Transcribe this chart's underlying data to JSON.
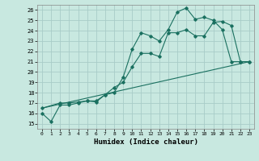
{
  "title": "",
  "xlabel": "Humidex (Indice chaleur)",
  "bg_color": "#c8e8e0",
  "grid_color": "#a8ccc8",
  "line_color": "#1a7060",
  "xlim": [
    -0.5,
    23.5
  ],
  "ylim": [
    14.5,
    26.5
  ],
  "xticks": [
    0,
    1,
    2,
    3,
    4,
    5,
    6,
    7,
    8,
    9,
    10,
    11,
    12,
    13,
    14,
    15,
    16,
    17,
    18,
    19,
    20,
    21,
    22,
    23
  ],
  "yticks": [
    15,
    16,
    17,
    18,
    19,
    20,
    21,
    22,
    23,
    24,
    25,
    26
  ],
  "line1_x": [
    0,
    1,
    2,
    3,
    4,
    5,
    6,
    7,
    8,
    9,
    10,
    11,
    12,
    13,
    14,
    15,
    16,
    17,
    18,
    19,
    20,
    21,
    22,
    23
  ],
  "line1_y": [
    16.0,
    15.2,
    16.8,
    16.8,
    17.0,
    17.2,
    17.1,
    17.8,
    18.5,
    19.0,
    20.5,
    21.8,
    21.8,
    21.5,
    23.8,
    23.8,
    24.1,
    23.5,
    23.5,
    24.8,
    24.9,
    24.5,
    21.0,
    21.0
  ],
  "line2_x": [
    0,
    2,
    3,
    4,
    5,
    6,
    7,
    8,
    9,
    10,
    11,
    12,
    13,
    14,
    15,
    16,
    17,
    18,
    19,
    20,
    21,
    22,
    23
  ],
  "line2_y": [
    16.5,
    17.0,
    17.0,
    17.1,
    17.2,
    17.2,
    17.8,
    18.0,
    19.5,
    22.2,
    23.8,
    23.5,
    23.0,
    24.1,
    25.8,
    26.2,
    25.1,
    25.3,
    25.0,
    24.1,
    21.0,
    21.0,
    21.0
  ],
  "line3_x": [
    0,
    23
  ],
  "line3_y": [
    16.5,
    21.0
  ]
}
